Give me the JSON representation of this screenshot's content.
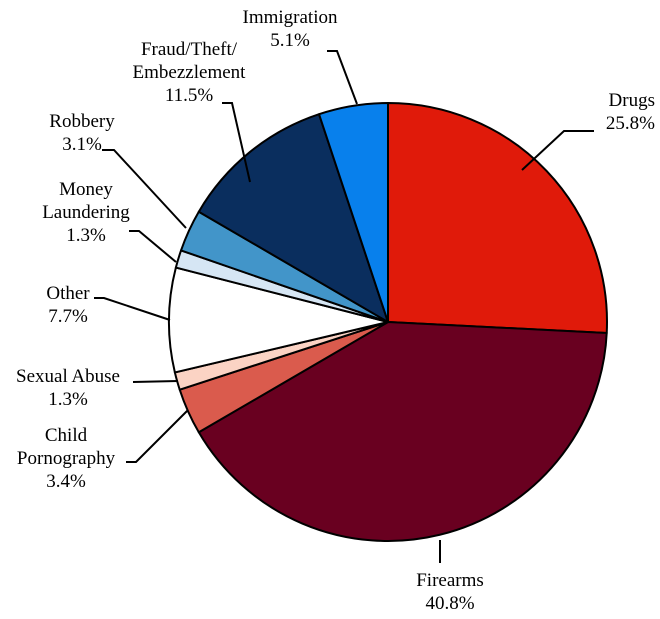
{
  "chart_data": {
    "type": "pie",
    "start_angle_deg": 0,
    "direction": "clockwise",
    "slices": [
      {
        "name": "Drugs",
        "label_lines": [
          "Drugs"
        ],
        "pct_label": "25.8%",
        "value": 25.8,
        "color": "#E01A0A"
      },
      {
        "name": "Firearms",
        "label_lines": [
          "Firearms"
        ],
        "pct_label": "40.8%",
        "value": 40.8,
        "color": "#690020"
      },
      {
        "name": "Child Pornography",
        "label_lines": [
          "Child",
          "Pornography"
        ],
        "pct_label": "3.4%",
        "value": 3.4,
        "color": "#DA5B4D"
      },
      {
        "name": "Sexual Abuse",
        "label_lines": [
          "Sexual Abuse"
        ],
        "pct_label": "1.3%",
        "value": 1.3,
        "color": "#FBD3C4"
      },
      {
        "name": "Other",
        "label_lines": [
          "Other"
        ],
        "pct_label": "7.7%",
        "value": 7.7,
        "color": "#FFFFFF"
      },
      {
        "name": "Money Laundering",
        "label_lines": [
          "Money",
          "Laundering"
        ],
        "pct_label": "1.3%",
        "value": 1.3,
        "color": "#D6E6F4"
      },
      {
        "name": "Robbery",
        "label_lines": [
          "Robbery"
        ],
        "pct_label": "3.1%",
        "value": 3.1,
        "color": "#4295C9"
      },
      {
        "name": "Fraud/Theft/Embezzlement",
        "label_lines": [
          "Fraud/Theft/",
          "Embezzlement"
        ],
        "pct_label": "11.5%",
        "value": 11.5,
        "color": "#0A2E5E"
      },
      {
        "name": "Immigration",
        "label_lines": [
          "Immigration"
        ],
        "pct_label": "5.1%",
        "value": 5.1,
        "color": "#0880EC"
      }
    ]
  }
}
